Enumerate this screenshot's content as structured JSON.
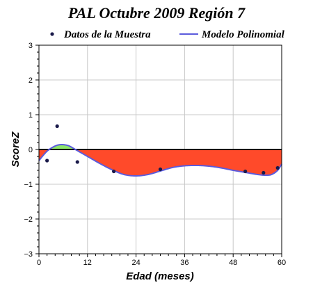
{
  "chart_data": {
    "type": "scatter",
    "title": "PAL Octubre 2009 Región 7",
    "xlabel": "Edad (meses)",
    "ylabel": "ScoreZ",
    "xlim": [
      0,
      60
    ],
    "ylim": [
      -3,
      3
    ],
    "x_ticks": [
      "0",
      "12",
      "24",
      "36",
      "48",
      "60"
    ],
    "y_ticks": [
      "3",
      "2",
      "1",
      "0",
      "−1",
      "−2",
      "−3"
    ],
    "grid": true,
    "legend_position": "top",
    "series": [
      {
        "name": "Datos de la Muestra",
        "kind": "points",
        "color": "#1a1a4a",
        "points": [
          {
            "x": 2,
            "y": -0.32
          },
          {
            "x": 4.5,
            "y": 0.67
          },
          {
            "x": 9.5,
            "y": -0.36
          },
          {
            "x": 18.5,
            "y": -0.63
          },
          {
            "x": 30,
            "y": -0.57
          },
          {
            "x": 51,
            "y": -0.63
          },
          {
            "x": 55.5,
            "y": -0.67
          },
          {
            "x": 59,
            "y": -0.53
          }
        ]
      },
      {
        "name": "Modelo Polinomial",
        "kind": "line",
        "color": "#5b5bdc",
        "points": [
          {
            "x": 0,
            "y": -0.32
          },
          {
            "x": 2,
            "y": -0.05
          },
          {
            "x": 4,
            "y": 0.1
          },
          {
            "x": 5.5,
            "y": 0.14
          },
          {
            "x": 7,
            "y": 0.12
          },
          {
            "x": 8,
            "y": 0.07
          },
          {
            "x": 9,
            "y": 0.0
          },
          {
            "x": 12,
            "y": -0.2
          },
          {
            "x": 15,
            "y": -0.4
          },
          {
            "x": 18,
            "y": -0.58
          },
          {
            "x": 21,
            "y": -0.72
          },
          {
            "x": 24,
            "y": -0.76
          },
          {
            "x": 27,
            "y": -0.72
          },
          {
            "x": 30,
            "y": -0.62
          },
          {
            "x": 33,
            "y": -0.52
          },
          {
            "x": 36,
            "y": -0.47
          },
          {
            "x": 39,
            "y": -0.46
          },
          {
            "x": 42,
            "y": -0.48
          },
          {
            "x": 45,
            "y": -0.53
          },
          {
            "x": 48,
            "y": -0.6
          },
          {
            "x": 51,
            "y": -0.66
          },
          {
            "x": 54,
            "y": -0.72
          },
          {
            "x": 56,
            "y": -0.74
          },
          {
            "x": 57.5,
            "y": -0.72
          },
          {
            "x": 59,
            "y": -0.6
          },
          {
            "x": 60,
            "y": -0.42
          }
        ]
      }
    ],
    "fill_positive_color": "#8ee66a",
    "fill_negative_color": "#ff4a2a"
  }
}
